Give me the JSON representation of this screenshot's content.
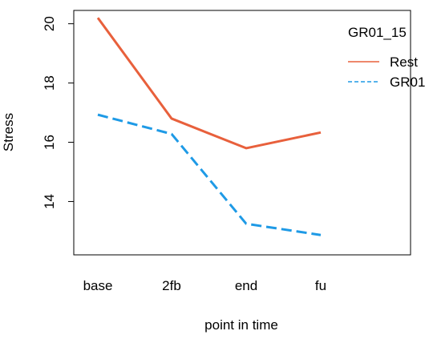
{
  "chart_data": {
    "type": "line",
    "title": "",
    "xlabel": "point in time",
    "ylabel": "Stress",
    "categories": [
      "base",
      "2fb",
      "end",
      "fu"
    ],
    "ylim": [
      12.2,
      20.45
    ],
    "y_ticks": [
      14,
      16,
      18,
      20
    ],
    "grid": false,
    "legend": {
      "title": "GR01_15",
      "placement": "top-right",
      "entries": [
        "Rest",
        "GR01"
      ]
    },
    "series": [
      {
        "name": "Rest",
        "values": [
          20.2,
          16.8,
          15.8,
          16.33
        ],
        "color": "#E8603C",
        "line_style": "solid"
      },
      {
        "name": "GR01",
        "values": [
          16.93,
          16.28,
          13.25,
          12.87
        ],
        "color": "#1E9AE6",
        "line_style": "dashed"
      }
    ]
  }
}
